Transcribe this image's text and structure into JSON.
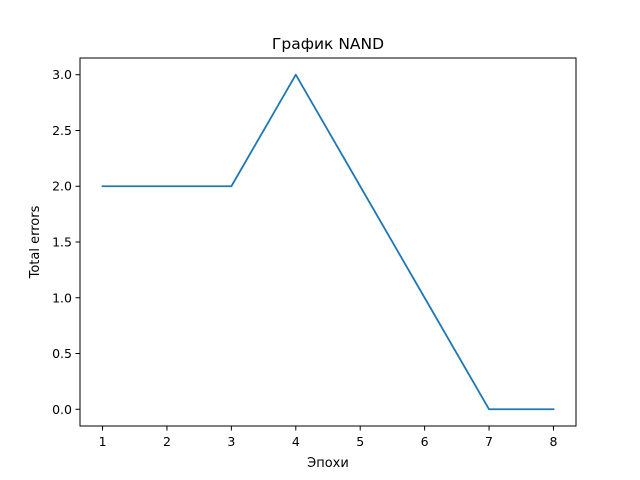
{
  "chart_data": {
    "type": "line",
    "title": "График NAND",
    "xlabel": "Эпохи",
    "ylabel": "Total errors",
    "x": [
      1,
      2,
      3,
      4,
      5,
      6,
      7,
      8
    ],
    "series": [
      {
        "values": [
          2,
          2,
          2,
          3,
          2,
          1,
          0,
          0
        ],
        "color": "#1f77b4"
      }
    ],
    "xlim": [
      0.65,
      8.35
    ],
    "ylim": [
      -0.15,
      3.15
    ],
    "xticks": [
      1,
      2,
      3,
      4,
      5,
      6,
      7,
      8
    ],
    "xtick_labels": [
      "1",
      "2",
      "3",
      "4",
      "5",
      "6",
      "7",
      "8"
    ],
    "yticks": [
      0.0,
      0.5,
      1.0,
      1.5,
      2.0,
      2.5,
      3.0
    ],
    "ytick_labels": [
      "0.0",
      "0.5",
      "1.0",
      "1.5",
      "2.0",
      "2.5",
      "3.0"
    ],
    "grid": false,
    "legend": false
  }
}
